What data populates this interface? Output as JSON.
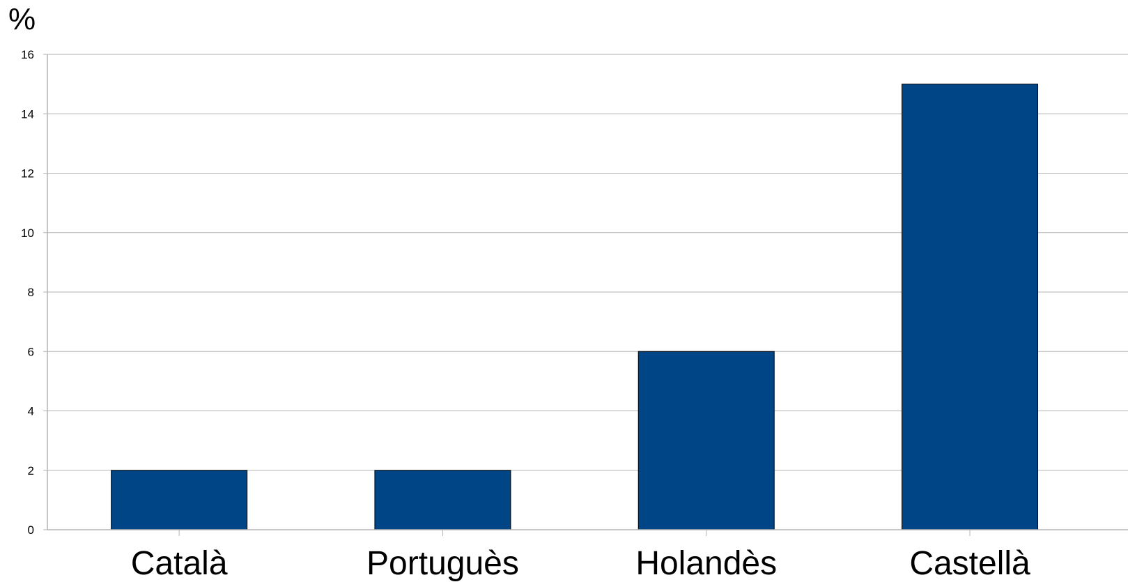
{
  "chart_data": {
    "type": "bar",
    "title": "",
    "xlabel": "",
    "ylabel": "%",
    "categories": [
      "Català",
      "Portuguès",
      "Holandès",
      "Castellà"
    ],
    "values": [
      2,
      2,
      6,
      15
    ],
    "ylim": [
      0,
      16
    ],
    "yticks": [
      "0",
      "2",
      "4",
      "6",
      "8",
      "10",
      "12",
      "14",
      "16"
    ],
    "grid": true,
    "legend": "none",
    "colors": {
      "bar": "#004586",
      "bar_outline": "#000000",
      "grid": "#b3b3b3",
      "axis": "#b3b3b3"
    }
  }
}
